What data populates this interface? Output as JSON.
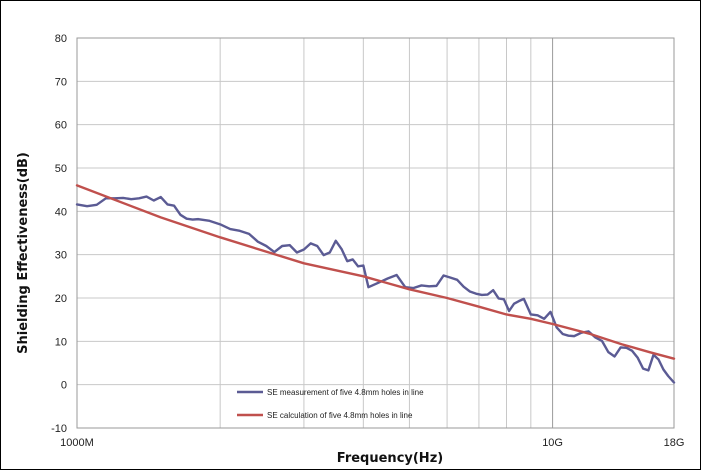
{
  "chart_data": {
    "type": "line",
    "title": "",
    "xlabel": "Frequency(Hz)",
    "ylabel": "Shielding Effectiveness(dB)",
    "x_scale": "log",
    "xlim": [
      1000000000,
      18000000000
    ],
    "ylim": [
      -10,
      80
    ],
    "y_ticks": [
      -10,
      0,
      10,
      20,
      30,
      40,
      50,
      60,
      70,
      80
    ],
    "x_tick_labels": [
      {
        "value": 1000000000,
        "label": "1000M"
      },
      {
        "value": 10000000000,
        "label": "10G"
      },
      {
        "value": 18000000000,
        "label": "18G"
      }
    ],
    "grid": true,
    "legend_position": "bottom-center",
    "series": [
      {
        "name": "SE measurement of five 4.8mm holes in line",
        "color": "#5b5b94",
        "x": [
          1000000000,
          1050000000,
          1100000000,
          1150000000,
          1200000000,
          1250000000,
          1300000000,
          1350000000,
          1400000000,
          1450000000,
          1500000000,
          1550000000,
          1600000000,
          1650000000,
          1700000000,
          1750000000,
          1800000000,
          1900000000,
          2000000000,
          2100000000,
          2200000000,
          2300000000,
          2400000000,
          2500000000,
          2600000000,
          2700000000,
          2800000000,
          2900000000,
          3000000000,
          3100000000,
          3200000000,
          3300000000,
          3400000000,
          3500000000,
          3600000000,
          3700000000,
          3800000000,
          3900000000,
          4000000000,
          4100000000,
          4300000000,
          4500000000,
          4700000000,
          4900000000,
          5100000000,
          5300000000,
          5500000000,
          5700000000,
          5900000000,
          6100000000,
          6300000000,
          6500000000,
          6700000000,
          6900000000,
          7100000000,
          7300000000,
          7500000000,
          7700000000,
          7900000000,
          8100000000,
          8300000000,
          8500000000,
          8700000000,
          9000000000,
          9300000000,
          9600000000,
          9900000000,
          10200000000,
          10500000000,
          10800000000,
          11100000000,
          11500000000,
          11900000000,
          12300000000,
          12700000000,
          13100000000,
          13500000000,
          13900000000,
          14300000000,
          14700000000,
          15100000000,
          15500000000,
          15900000000,
          16300000000,
          16700000000,
          17100000000,
          17500000000,
          18000000000
        ],
        "y": [
          41.6,
          41.2,
          41.5,
          43.0,
          43.0,
          43.1,
          42.8,
          43.0,
          43.4,
          42.5,
          43.3,
          41.6,
          41.3,
          39.2,
          38.3,
          38.1,
          38.2,
          37.8,
          37.0,
          35.9,
          35.5,
          34.8,
          33.0,
          32.0,
          30.6,
          32.0,
          32.2,
          30.5,
          31.2,
          32.6,
          32.0,
          29.9,
          30.5,
          33.2,
          31.3,
          28.5,
          28.9,
          27.3,
          27.5,
          22.5,
          23.5,
          24.5,
          25.3,
          22.5,
          22.3,
          22.9,
          22.7,
          22.8,
          25.2,
          24.7,
          24.2,
          22.6,
          21.5,
          21.0,
          20.7,
          20.8,
          21.8,
          19.9,
          19.7,
          17.0,
          18.7,
          19.3,
          19.8,
          16.2,
          16.0,
          15.2,
          16.8,
          13.2,
          11.7,
          11.3,
          11.2,
          12.0,
          12.3,
          10.9,
          10.1,
          7.5,
          6.5,
          8.6,
          8.5,
          7.8,
          6.2,
          3.7,
          3.3,
          6.9,
          5.8,
          3.5,
          2.0,
          0.5
        ]
      },
      {
        "name": "SE calculation of five 4.8mm holes in line",
        "color": "#c0504d",
        "x": [
          1000000000,
          1500000000,
          2000000000,
          3000000000,
          4000000000,
          5000000000,
          6000000000,
          7000000000,
          8000000000,
          9000000000,
          10000000000,
          12000000000,
          14000000000,
          16000000000,
          18000000000
        ],
        "y": [
          46.0,
          38.6,
          34.0,
          28.0,
          25.0,
          22.0,
          20.0,
          18.0,
          16.2,
          15.2,
          14.0,
          11.7,
          9.3,
          7.5,
          6.0
        ]
      }
    ]
  }
}
